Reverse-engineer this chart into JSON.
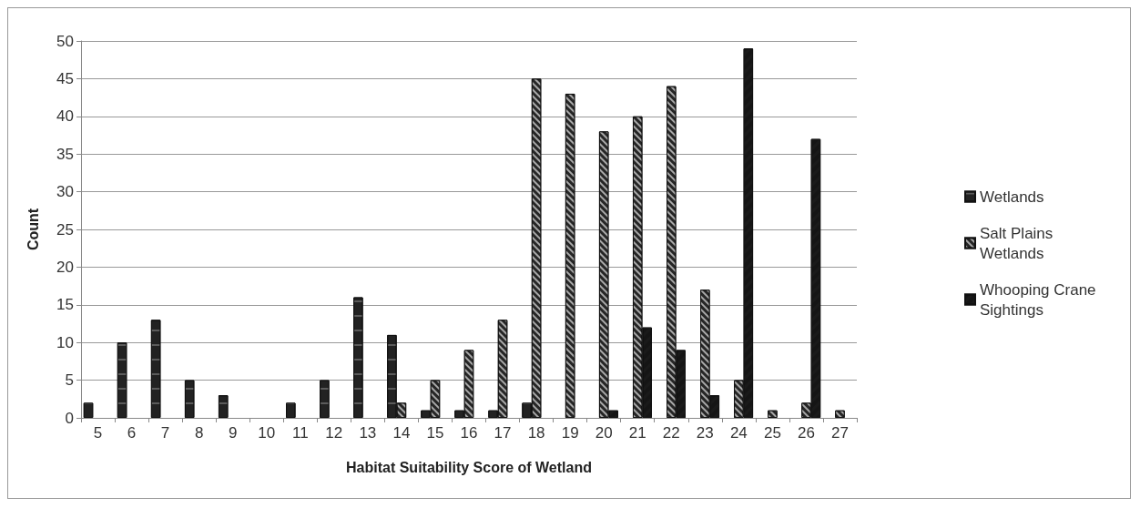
{
  "chart_data": {
    "type": "bar",
    "xlabel": "Habitat Suitability Score of Wetland",
    "ylabel": "Count",
    "categories": [
      "5",
      "6",
      "7",
      "8",
      "9",
      "10",
      "11",
      "12",
      "13",
      "14",
      "15",
      "16",
      "17",
      "18",
      "19",
      "20",
      "21",
      "22",
      "23",
      "24",
      "25",
      "26",
      "27"
    ],
    "series": [
      {
        "name": "Wetlands",
        "color": "#222222",
        "values": [
          2,
          10,
          13,
          5,
          3,
          null,
          2,
          5,
          16,
          11,
          1,
          1,
          1,
          2,
          null,
          null,
          null,
          null,
          null,
          null,
          null,
          null,
          null
        ]
      },
      {
        "name": "Salt Plains Wetlands",
        "color": "#262626",
        "values": [
          null,
          null,
          null,
          null,
          null,
          null,
          null,
          null,
          null,
          2,
          5,
          9,
          13,
          45,
          43,
          38,
          40,
          44,
          17,
          5,
          1,
          2,
          1
        ]
      },
      {
        "name": "Whooping Crane Sightings",
        "color": "#1a1a1a",
        "values": [
          null,
          null,
          null,
          null,
          null,
          null,
          null,
          null,
          null,
          null,
          null,
          null,
          null,
          null,
          null,
          1,
          12,
          9,
          3,
          49,
          null,
          37,
          null
        ]
      }
    ],
    "ylim": [
      0,
      50
    ],
    "yticks": [
      0,
      5,
      10,
      15,
      20,
      25,
      30,
      35,
      40,
      45,
      50
    ],
    "grid": "y",
    "legend": "right"
  }
}
